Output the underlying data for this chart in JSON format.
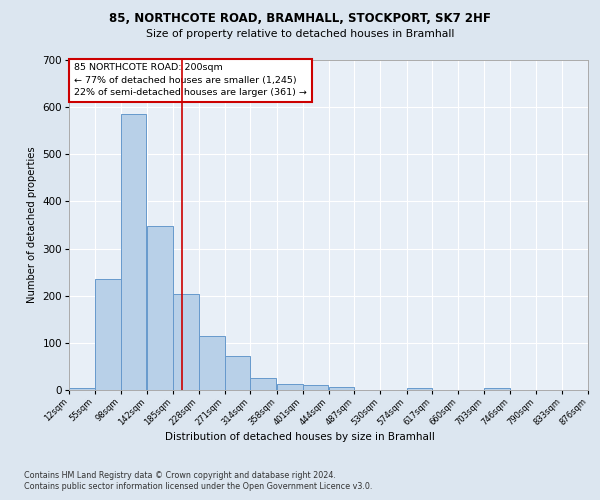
{
  "title1": "85, NORTHCOTE ROAD, BRAMHALL, STOCKPORT, SK7 2HF",
  "title2": "Size of property relative to detached houses in Bramhall",
  "xlabel": "Distribution of detached houses by size in Bramhall",
  "ylabel": "Number of detached properties",
  "footer1": "Contains HM Land Registry data © Crown copyright and database right 2024.",
  "footer2": "Contains public sector information licensed under the Open Government Licence v3.0.",
  "annotation_line1": "85 NORTHCOTE ROAD: 200sqm",
  "annotation_line2": "← 77% of detached houses are smaller (1,245)",
  "annotation_line3": "22% of semi-detached houses are larger (361) →",
  "property_size": 200,
  "bin_edges": [
    12,
    55,
    98,
    142,
    185,
    228,
    271,
    314,
    358,
    401,
    444,
    487,
    530,
    574,
    617,
    660,
    703,
    746,
    790,
    833,
    876
  ],
  "bar_heights": [
    5,
    235,
    585,
    348,
    203,
    115,
    73,
    25,
    13,
    10,
    6,
    0,
    0,
    5,
    0,
    0,
    5,
    0,
    0,
    0
  ],
  "bar_color": "#b8d0e8",
  "bar_edge_color": "#6699cc",
  "vertical_line_color": "#cc0000",
  "annotation_box_color": "#cc0000",
  "bg_color": "#dce6f0",
  "plot_bg_color": "#e8eff7",
  "ylim": [
    0,
    700
  ],
  "xlim": [
    12,
    876
  ]
}
